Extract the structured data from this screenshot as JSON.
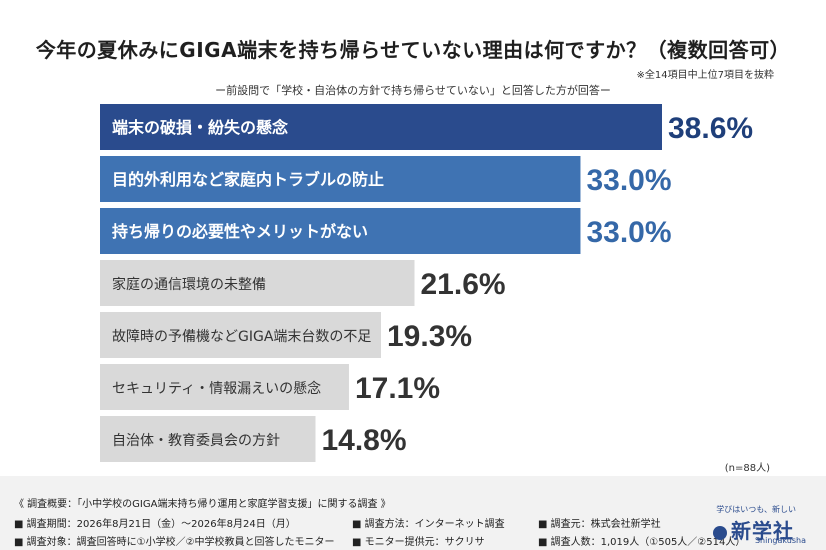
{
  "header": {
    "title": "今年の夏休みにGIGA端末を持ち帰らせていない理由は何ですか？（複数回答可）",
    "note": "※全14項目中上位7項目を抜粋",
    "subtitle": "ー前設問で「学校・自治体の方針で持ち帰らせていない」と回答した方が回答ー"
  },
  "chart_data": {
    "type": "bar",
    "orientation": "horizontal",
    "categories": [
      "端末の破損・紛失の懸念",
      "目的外利用など家庭内トラブルの防止",
      "持ち帰りの必要性やメリットがない",
      "家庭の通信環境の未整備",
      "故障時の予備機などGIGA端末台数の不足",
      "セキュリティ・情報漏えいの懸念",
      "自治体・教育委員会の方針"
    ],
    "values": [
      38.6,
      33.0,
      33.0,
      21.6,
      19.3,
      17.1,
      14.8
    ],
    "value_labels": [
      "38.6%",
      "33.0%",
      "33.0%",
      "21.6%",
      "19.3%",
      "17.1%",
      "14.8%"
    ],
    "unit": "%",
    "colors": {
      "top": "#2a4b8d",
      "mid": "#3f73b3",
      "rest": "#d9d9d9",
      "label_dark": "#1f3f7a",
      "label_mid": "#3568a8",
      "label_rest": "#333333"
    },
    "grid": false
  },
  "sample": {
    "n_label": "(n=88人)"
  },
  "footer": {
    "heading": "《 調査概要：「小中学校のGIGA端末持ち帰り運用と家庭学習支援」に関する調査 》",
    "rows": [
      [
        "■ 調査期間：2026年8月21日（金）〜2026年8月24日（月）",
        "■ 調査方法：インターネット調査",
        "■ 調査元：株式会社新学社"
      ],
      [
        "■ 調査対象：調査回答時に①小学校／②中学校教員と回答したモニター",
        "■ モニター提供元：サクリサ",
        "■ 調査人数：1,019人（①505人／②514人）"
      ]
    ],
    "logo_tagline": "学びはいつも、新しい",
    "logo_name": "新学社",
    "logo_roman": "Shingakusha"
  }
}
